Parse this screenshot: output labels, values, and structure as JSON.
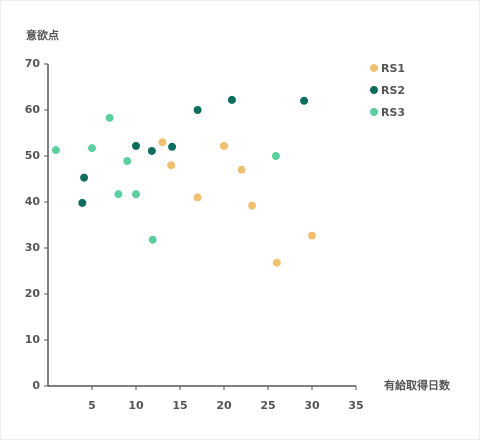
{
  "chart_data": {
    "type": "scatter",
    "y_label": "意欲点",
    "x_label": "有給取得日数",
    "xlim": [
      0,
      35
    ],
    "xticks": [
      5,
      10,
      15,
      20,
      25,
      30,
      35
    ],
    "ylim": [
      0,
      70
    ],
    "yticks": [
      0,
      10,
      20,
      30,
      40,
      50,
      60,
      70
    ],
    "legend": "top-right",
    "series": [
      {
        "name": "RS1",
        "color": "#f0c070",
        "x": [
          13,
          14,
          17,
          20,
          22,
          23.2,
          26,
          30
        ],
        "values": [
          53,
          48,
          41,
          52.2,
          47,
          39.2,
          26.8,
          32.7
        ]
      },
      {
        "name": "RS2",
        "color": "#0d6e5e",
        "x": [
          4.1,
          3.9,
          10,
          11.8,
          14.1,
          17,
          20.9,
          29.1
        ],
        "values": [
          45.3,
          39.8,
          52.2,
          51.1,
          52,
          60,
          62.2,
          62
        ]
      },
      {
        "name": "RS3",
        "color": "#5ccf9f",
        "x": [
          0.9,
          5,
          7,
          8,
          9,
          10,
          11.9,
          25.9
        ],
        "values": [
          51.3,
          51.7,
          58.3,
          41.7,
          48.9,
          41.7,
          31.8,
          50
        ]
      }
    ]
  }
}
